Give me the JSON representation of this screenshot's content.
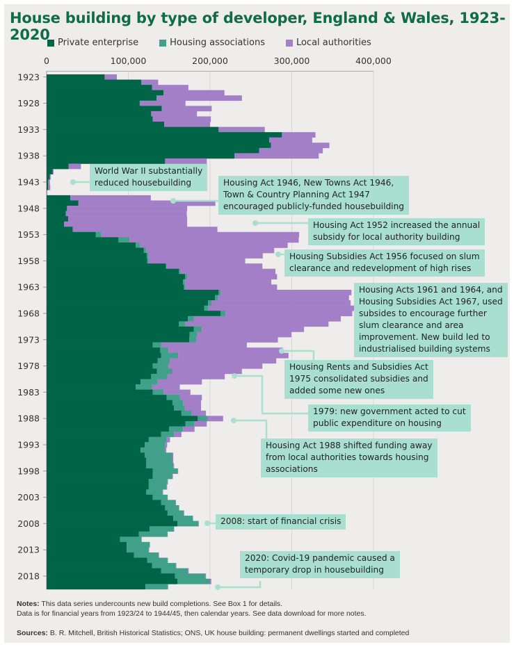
{
  "title": "House building by type of developer, England & Wales, 1923-2020",
  "legend": [
    {
      "label": "Private enterprise",
      "color": "#006446"
    },
    {
      "label": "Housing associations",
      "color": "#41a08a"
    },
    {
      "label": "Local authorities",
      "color": "#a37fc8"
    }
  ],
  "chart_data": {
    "type": "bar",
    "orientation": "horizontal",
    "stacked": true,
    "title": "House building by type of developer, England & Wales, 1923-2020",
    "xlabel": "",
    "ylabel": "",
    "xlim": [
      0,
      400000
    ],
    "x_ticks": [
      0,
      100000,
      200000,
      300000,
      400000
    ],
    "x_tick_labels": [
      "0",
      "100,000",
      "200,000",
      "300,000",
      "400,000"
    ],
    "y_tick_labels": [
      "1923",
      "1928",
      "1933",
      "1938",
      "1943",
      "1948",
      "1953",
      "1958",
      "1963",
      "1968",
      "1973",
      "1978",
      "1983",
      "1988",
      "1993",
      "1998",
      "2003",
      "2008",
      "2013",
      "2018"
    ],
    "grid": true,
    "legend_position": "top",
    "years": [
      1923,
      1924,
      1925,
      1926,
      1927,
      1928,
      1929,
      1930,
      1931,
      1932,
      1933,
      1934,
      1935,
      1936,
      1937,
      1938,
      1939,
      1940,
      1941,
      1942,
      1943,
      1944,
      1945,
      1946,
      1947,
      1948,
      1949,
      1950,
      1951,
      1952,
      1953,
      1954,
      1955,
      1956,
      1957,
      1958,
      1959,
      1960,
      1961,
      1962,
      1963,
      1964,
      1965,
      1966,
      1967,
      1968,
      1969,
      1970,
      1971,
      1972,
      1973,
      1974,
      1975,
      1976,
      1977,
      1978,
      1979,
      1980,
      1981,
      1982,
      1983,
      1984,
      1985,
      1986,
      1987,
      1988,
      1989,
      1990,
      1991,
      1992,
      1993,
      1994,
      1995,
      1996,
      1997,
      1998,
      1999,
      2000,
      2001,
      2002,
      2003,
      2004,
      2005,
      2006,
      2007,
      2008,
      2009,
      2010,
      2011,
      2012,
      2013,
      2014,
      2015,
      2016,
      2017,
      2018,
      2019,
      2020
    ],
    "series": [
      {
        "name": "Private enterprise",
        "color": "#006446",
        "values": [
          71000,
          116000,
          129000,
          143000,
          134500,
          114000,
          141000,
          128000,
          130000,
          144000,
          210500,
          288000,
          272500,
          274500,
          260000,
          230000,
          145000,
          27000,
          7500,
          4000,
          2000,
          2000,
          500,
          29000,
          39000,
          25000,
          23500,
          26500,
          21500,
          32000,
          60000,
          88000,
          109000,
          119000,
          122500,
          123000,
          146000,
          162000,
          169500,
          167000,
          168000,
          210500,
          206000,
          197500,
          193000,
          213000,
          173000,
          162000,
          180000,
          175000,
          174500,
          130000,
          139000,
          140000,
          136000,
          130000,
          135000,
          128000,
          115000,
          109000,
          130000,
          147000,
          154000,
          156000,
          165000,
          185000,
          170000,
          150000,
          140000,
          125000,
          120000,
          115000,
          120000,
          122000,
          122000,
          130000,
          130000,
          125000,
          125000,
          122000,
          130000,
          140000,
          145000,
          148000,
          155000,
          160000,
          126000,
          113000,
          90000,
          98000,
          98000,
          107000,
          123000,
          129000,
          140000,
          157000,
          160000,
          121000
        ]
      },
      {
        "name": "Housing associations",
        "color": "#41a08a",
        "values": [
          0,
          0,
          0,
          0,
          0,
          0,
          0,
          0,
          0,
          0,
          0,
          0,
          0,
          0,
          0,
          0,
          0,
          0,
          0,
          0,
          0,
          0,
          0,
          0,
          0,
          0,
          0,
          0,
          0,
          0,
          7000,
          13500,
          5000,
          3000,
          2000,
          2000,
          1000,
          2000,
          2500,
          2000,
          2000,
          2500,
          4000,
          4500,
          4500,
          6000,
          7000,
          8000,
          10000,
          9500,
          8500,
          10000,
          10000,
          21000,
          15000,
          19000,
          19000,
          20000,
          21000,
          20000,
          13000,
          16000,
          13000,
          13000,
          12000,
          12000,
          11000,
          17000,
          16000,
          22000,
          25000,
          30000,
          34000,
          32000,
          33000,
          30000,
          24000,
          23000,
          22000,
          20000,
          18000,
          18000,
          17000,
          20000,
          24000,
          26000,
          30000,
          35000,
          26000,
          28000,
          27000,
          30000,
          25000,
          29000,
          33000,
          37000,
          40000,
          27000
        ]
      },
      {
        "name": "Local authorities",
        "color": "#a37fc8",
        "values": [
          15000,
          20500,
          44500,
          74600,
          104500,
          56000,
          61000,
          56000,
          71000,
          56000,
          56500,
          41000,
          52500,
          71500,
          78000,
          103000,
          51000,
          15000,
          1000,
          1000,
          2000,
          2500,
          0,
          98500,
          167500,
          147000,
          148000,
          145500,
          150500,
          177000,
          242000,
          207000,
          181000,
          156500,
          140000,
          118000,
          117000,
          116000,
          110000,
          106000,
          112000,
          160000,
          160000,
          170000,
          182000,
          155000,
          180000,
          175000,
          125000,
          115000,
          100000,
          105000,
          140000,
          135000,
          130000,
          115000,
          85000,
          70000,
          54000,
          34000,
          33000,
          27000,
          22000,
          20000,
          18000,
          19000,
          15000,
          14000,
          9000,
          4000,
          2500,
          1500,
          1000,
          1000,
          1000,
          1000,
          500,
          500,
          500,
          500,
          300,
          300,
          300,
          300,
          300,
          200,
          200,
          200,
          500,
          500,
          500,
          500,
          500,
          800,
          900,
          1100,
          1500,
          800
        ]
      }
    ]
  },
  "annotations": [
    {
      "text": "World War II substantially\nreduced housebuilding",
      "year": 1944
    },
    {
      "text": "Housing Act 1946, New Towns Act 1946,\nTown & Country Planning Act 1947\nencouraged publicly-funded housebuilding",
      "year": 1948
    },
    {
      "text": "Housing Act 1952 increased the annual\nsubsidy for local authority building",
      "year": 1952
    },
    {
      "text": "Housing Subsidies Act 1956 focused on slum\nclearance and redevelopment of high rises",
      "year": 1956
    },
    {
      "text": "Housing Acts 1961 and 1964, and\nHousing Subsidies Act 1967, used\nsubsides to encourage further\nslum clearance and area\nimprovement. New build led to\nindustrialised building systems",
      "year": 1967
    },
    {
      "text": "Housing Rents and Subsidies Act\n1975 consolidated subsidies and\nadded some new ones",
      "year": 1975
    },
    {
      "text": "1979: new government acted to cut\npublic expenditure on housing",
      "year": 1979
    },
    {
      "text": "Housing Act 1988 shifted funding away\nfrom local authorities towards housing\nassociations",
      "year": 1988
    },
    {
      "text": "2008: start of financial crisis",
      "year": 2008
    },
    {
      "text": "2020: Covid-19 pandemic caused a\ntemporary drop in housebuilding",
      "year": 2020
    }
  ],
  "footer": {
    "notes_label": "Notes:",
    "notes_line1": "This data series undercounts new build completions. See Box 1 for details.",
    "notes_line2": "Data is for financial years from 1923/24 to 1944/45, then calendar years. See data download for more notes.",
    "sources_label": "Sources:",
    "sources_text": "B. R. Mitchell, British Historical Statistics; ONS, UK house building: permanent dwellings started and completed"
  }
}
